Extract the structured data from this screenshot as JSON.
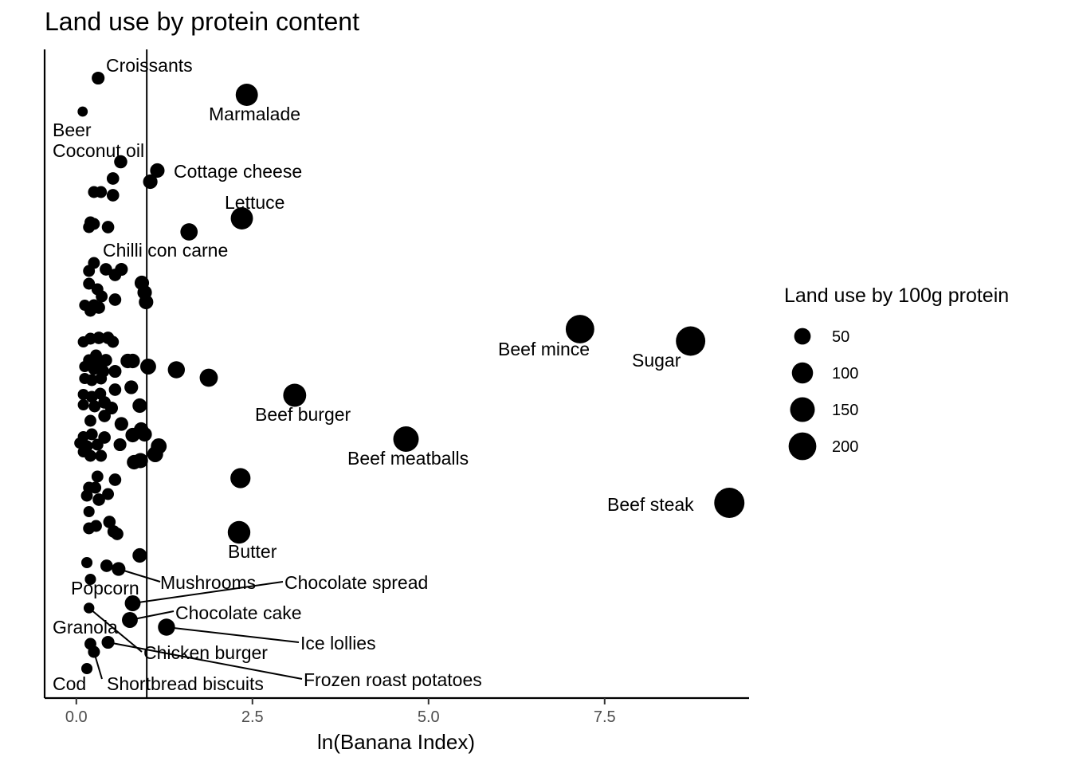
{
  "chart_data": {
    "type": "scatter",
    "title": "Land use by protein content",
    "xlabel": "ln(Banana Index)",
    "ylabel": "",
    "xlim": [
      -0.45,
      9.55
    ],
    "x_ticks": [
      0,
      2.5,
      5,
      7.5
    ],
    "x_tick_labels": [
      "0.0",
      "2.5",
      "5.0",
      "7.5"
    ],
    "reference_line_x": 1.0,
    "y_axis_ticks": false,
    "grid": false,
    "legend": {
      "title": "Land use by 100g protein",
      "position": "right",
      "sizes": [
        50,
        100,
        150,
        200
      ],
      "labels": [
        "50",
        "100",
        "150",
        "200"
      ]
    },
    "labeled_points": [
      {
        "name": "Croissants",
        "x": 0.31,
        "y": 98,
        "size": 20
      },
      {
        "name": "Marmalade",
        "x": 2.42,
        "y": 119,
        "size": 105
      },
      {
        "name": "Beer",
        "x": 0.09,
        "y": 140,
        "size": 8
      },
      {
        "name": "Coconut oil",
        "x": 0.63,
        "y": 203,
        "size": 22
      },
      {
        "name": "Cottage cheese",
        "x": 1.15,
        "y": 214,
        "size": 30
      },
      {
        "name": "Lettuce",
        "x": 2.35,
        "y": 274,
        "size": 105
      },
      {
        "name": "Chilli con carne",
        "x": 1.6,
        "y": 291,
        "size": 52
      },
      {
        "name": "Beef mince",
        "x": 7.15,
        "y": 413,
        "size": 200
      },
      {
        "name": "Sugar",
        "x": 8.72,
        "y": 428,
        "size": 215
      },
      {
        "name": "Beef burger",
        "x": 3.1,
        "y": 496,
        "size": 115
      },
      {
        "name": "Beef meatballs",
        "x": 4.68,
        "y": 551,
        "size": 150
      },
      {
        "name": "Beef steak",
        "x": 9.27,
        "y": 631,
        "size": 230
      },
      {
        "name": "Butter",
        "x": 2.31,
        "y": 668,
        "size": 110
      },
      {
        "name": "Mushrooms",
        "x": 0.6,
        "y": 714,
        "size": 25
      },
      {
        "name": "Chocolate spread",
        "x": 0.8,
        "y": 757,
        "size": 40
      },
      {
        "name": "Popcorn",
        "x": 0.18,
        "y": 763,
        "size": 10
      },
      {
        "name": "Chocolate cake",
        "x": 0.76,
        "y": 778,
        "size": 40
      },
      {
        "name": "Ice lollies",
        "x": 1.28,
        "y": 787,
        "size": 50
      },
      {
        "name": "Granola",
        "x": 0.2,
        "y": 808,
        "size": 15
      },
      {
        "name": "Chicken burger",
        "x": 0.45,
        "y": 806,
        "size": 20
      },
      {
        "name": "Frozen roast potatoes",
        "x": 0.25,
        "y": 818,
        "size": 15
      },
      {
        "name": "Cod",
        "x": 0.15,
        "y": 839,
        "size": 12
      },
      {
        "name": "Shortbread biscuits",
        "x": 0.25,
        "y": 818,
        "size": 15
      }
    ],
    "points": [
      {
        "x": 0.25,
        "y": 241,
        "size": 15
      },
      {
        "x": 0.35,
        "y": 241,
        "size": 15
      },
      {
        "x": 0.52,
        "y": 245,
        "size": 18
      },
      {
        "x": 0.52,
        "y": 224,
        "size": 18
      },
      {
        "x": 1.05,
        "y": 228,
        "size": 30
      },
      {
        "x": 0.18,
        "y": 285,
        "size": 15
      },
      {
        "x": 0.25,
        "y": 281,
        "size": 15
      },
      {
        "x": 0.45,
        "y": 285,
        "size": 18
      },
      {
        "x": 0.2,
        "y": 279,
        "size": 15
      },
      {
        "x": 0.25,
        "y": 330,
        "size": 15
      },
      {
        "x": 0.18,
        "y": 340,
        "size": 15
      },
      {
        "x": 0.42,
        "y": 338,
        "size": 18
      },
      {
        "x": 0.55,
        "y": 345,
        "size": 18
      },
      {
        "x": 0.64,
        "y": 338,
        "size": 20
      },
      {
        "x": 0.18,
        "y": 356,
        "size": 15
      },
      {
        "x": 0.3,
        "y": 363,
        "size": 15
      },
      {
        "x": 0.55,
        "y": 376,
        "size": 18
      },
      {
        "x": 0.36,
        "y": 372,
        "size": 15
      },
      {
        "x": 0.93,
        "y": 355,
        "size": 30
      },
      {
        "x": 0.97,
        "y": 367,
        "size": 30
      },
      {
        "x": 0.99,
        "y": 379,
        "size": 30
      },
      {
        "x": 0.12,
        "y": 383,
        "size": 12
      },
      {
        "x": 0.25,
        "y": 383,
        "size": 15
      },
      {
        "x": 0.2,
        "y": 390,
        "size": 15
      },
      {
        "x": 0.32,
        "y": 386,
        "size": 18
      },
      {
        "x": 0.1,
        "y": 429,
        "size": 12
      },
      {
        "x": 0.2,
        "y": 425,
        "size": 15
      },
      {
        "x": 0.32,
        "y": 424,
        "size": 18
      },
      {
        "x": 0.45,
        "y": 424,
        "size": 18
      },
      {
        "x": 0.52,
        "y": 429,
        "size": 15
      },
      {
        "x": 0.28,
        "y": 446,
        "size": 15
      },
      {
        "x": 0.18,
        "y": 452,
        "size": 15
      },
      {
        "x": 0.3,
        "y": 456,
        "size": 18
      },
      {
        "x": 0.42,
        "y": 452,
        "size": 18
      },
      {
        "x": 0.12,
        "y": 460,
        "size": 12
      },
      {
        "x": 0.25,
        "y": 463,
        "size": 15
      },
      {
        "x": 0.38,
        "y": 466,
        "size": 18
      },
      {
        "x": 0.55,
        "y": 466,
        "size": 20
      },
      {
        "x": 0.73,
        "y": 453,
        "size": 30
      },
      {
        "x": 0.8,
        "y": 453,
        "size": 30
      },
      {
        "x": 0.12,
        "y": 475,
        "size": 12
      },
      {
        "x": 0.22,
        "y": 477,
        "size": 15
      },
      {
        "x": 0.35,
        "y": 475,
        "size": 15
      },
      {
        "x": 1.02,
        "y": 460,
        "size": 40
      },
      {
        "x": 1.42,
        "y": 464,
        "size": 50
      },
      {
        "x": 1.88,
        "y": 474,
        "size": 60
      },
      {
        "x": 0.1,
        "y": 495,
        "size": 12
      },
      {
        "x": 0.22,
        "y": 498,
        "size": 15
      },
      {
        "x": 0.34,
        "y": 494,
        "size": 15
      },
      {
        "x": 0.55,
        "y": 489,
        "size": 18
      },
      {
        "x": 0.78,
        "y": 486,
        "size": 25
      },
      {
        "x": 0.1,
        "y": 508,
        "size": 12
      },
      {
        "x": 0.26,
        "y": 510,
        "size": 15
      },
      {
        "x": 0.4,
        "y": 505,
        "size": 18
      },
      {
        "x": 0.5,
        "y": 512,
        "size": 20
      },
      {
        "x": 0.9,
        "y": 509,
        "size": 30
      },
      {
        "x": 0.2,
        "y": 528,
        "size": 15
      },
      {
        "x": 0.4,
        "y": 522,
        "size": 18
      },
      {
        "x": 0.64,
        "y": 532,
        "size": 25
      },
      {
        "x": 0.1,
        "y": 548,
        "size": 12
      },
      {
        "x": 0.22,
        "y": 545,
        "size": 15
      },
      {
        "x": 0.4,
        "y": 549,
        "size": 18
      },
      {
        "x": 0.8,
        "y": 546,
        "size": 30
      },
      {
        "x": 0.92,
        "y": 539,
        "size": 30
      },
      {
        "x": 0.97,
        "y": 545,
        "size": 30
      },
      {
        "x": 0.05,
        "y": 556,
        "size": 12
      },
      {
        "x": 0.15,
        "y": 560,
        "size": 15
      },
      {
        "x": 0.3,
        "y": 558,
        "size": 15
      },
      {
        "x": 0.62,
        "y": 558,
        "size": 20
      },
      {
        "x": 1.17,
        "y": 560,
        "size": 40
      },
      {
        "x": 1.12,
        "y": 570,
        "size": 40
      },
      {
        "x": 0.1,
        "y": 567,
        "size": 12
      },
      {
        "x": 0.2,
        "y": 572,
        "size": 15
      },
      {
        "x": 0.35,
        "y": 572,
        "size": 15
      },
      {
        "x": 0.82,
        "y": 580,
        "size": 30
      },
      {
        "x": 0.91,
        "y": 578,
        "size": 35
      },
      {
        "x": 2.33,
        "y": 600,
        "size": 80
      },
      {
        "x": 0.18,
        "y": 612,
        "size": 15
      },
      {
        "x": 0.27,
        "y": 612,
        "size": 15
      },
      {
        "x": 0.55,
        "y": 602,
        "size": 18
      },
      {
        "x": 0.3,
        "y": 598,
        "size": 15
      },
      {
        "x": 0.15,
        "y": 622,
        "size": 15
      },
      {
        "x": 0.32,
        "y": 627,
        "size": 18
      },
      {
        "x": 0.45,
        "y": 620,
        "size": 15
      },
      {
        "x": 0.18,
        "y": 642,
        "size": 12
      },
      {
        "x": 0.18,
        "y": 663,
        "size": 15
      },
      {
        "x": 0.28,
        "y": 660,
        "size": 15
      },
      {
        "x": 0.47,
        "y": 655,
        "size": 18
      },
      {
        "x": 0.53,
        "y": 667,
        "size": 18
      },
      {
        "x": 0.58,
        "y": 670,
        "size": 18
      },
      {
        "x": 0.15,
        "y": 706,
        "size": 12
      },
      {
        "x": 0.43,
        "y": 710,
        "size": 18
      },
      {
        "x": 0.9,
        "y": 697,
        "size": 30
      },
      {
        "x": 0.2,
        "y": 727,
        "size": 12
      }
    ]
  }
}
